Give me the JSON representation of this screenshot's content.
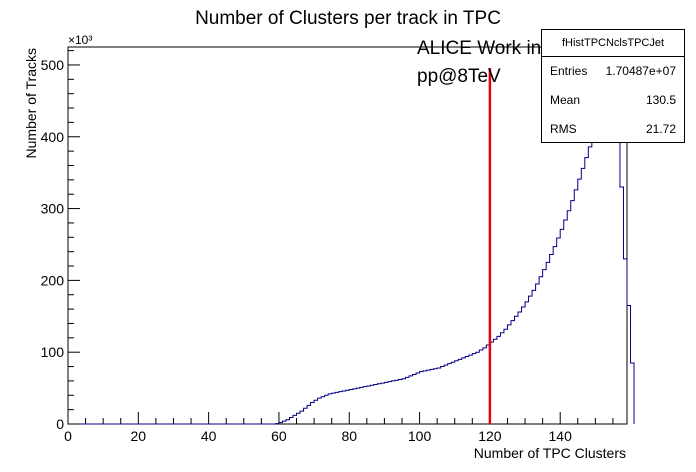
{
  "chart_data": {
    "type": "histogram",
    "title": "Number of Clusters per track in TPC",
    "xlabel": "Number of TPC Clusters",
    "ylabel": "Number of Tracks",
    "y_exponent_label": "×10³",
    "xlim": [
      0,
      159
    ],
    "ylim": [
      0,
      525
    ],
    "x_ticks": [
      0,
      20,
      40,
      60,
      80,
      100,
      120,
      140
    ],
    "y_ticks": [
      0,
      100,
      200,
      300,
      400,
      500
    ],
    "bin_width": 1,
    "bin_start": 0,
    "line_color": "#000080",
    "values": [
      0,
      0,
      0,
      0,
      0,
      0,
      0,
      0,
      0,
      0,
      0,
      0,
      0,
      0,
      0,
      0,
      0,
      0,
      0,
      0,
      0,
      0,
      0,
      0,
      0,
      0,
      0,
      0,
      0,
      0,
      0,
      0,
      0,
      0,
      0,
      0,
      0,
      0,
      0,
      0,
      0,
      0,
      0,
      0,
      0,
      0,
      0,
      0,
      0,
      0,
      0,
      0,
      0,
      0,
      0,
      0,
      0,
      0,
      0,
      0.5,
      2,
      4,
      6,
      9,
      12,
      15,
      18,
      22,
      26,
      30,
      33,
      36,
      38,
      40,
      42,
      43,
      44,
      45,
      46,
      47,
      48,
      49,
      50,
      51,
      52,
      53,
      54,
      55,
      56,
      57,
      58,
      59,
      60,
      61,
      62,
      63,
      65,
      67,
      69,
      71,
      73,
      74,
      75,
      76,
      77,
      78,
      80,
      82,
      84,
      86,
      88,
      90,
      92,
      94,
      96,
      98,
      100,
      103,
      106,
      110,
      114,
      118,
      122,
      127,
      132,
      138,
      144,
      150,
      156,
      163,
      170,
      178,
      186,
      195,
      205,
      215,
      225,
      236,
      247,
      259,
      271,
      284,
      297,
      311,
      326,
      341,
      356,
      371,
      386,
      401,
      416,
      430,
      444,
      458,
      470,
      480,
      435,
      330,
      230,
      165,
      85
    ],
    "marker_line": {
      "x": 120,
      "color": "#e8000b"
    },
    "annotations": [
      "ALICE Work in Progress",
      "pp@8TeV"
    ],
    "stats": {
      "name": "fHistTPCNclsTPCJet",
      "entries_label": "Entries",
      "entries": "1.70487e+07",
      "mean_label": "Mean",
      "mean": "130.5",
      "rms_label": "RMS",
      "rms": "21.72"
    }
  }
}
